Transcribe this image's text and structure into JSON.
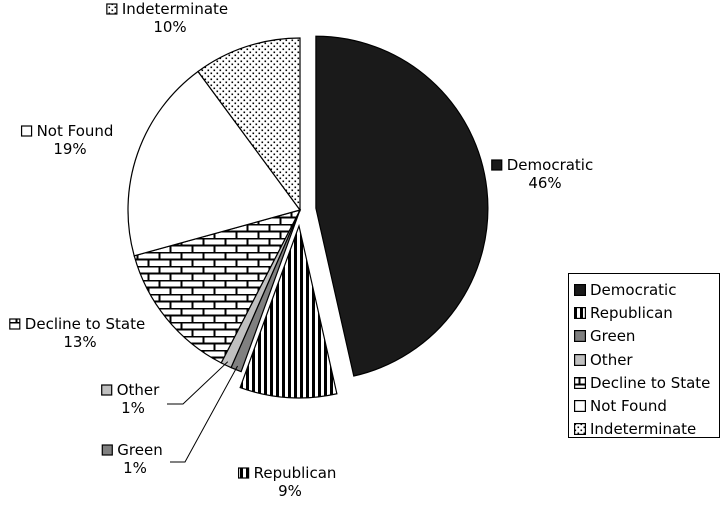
{
  "chart_data": {
    "type": "pie",
    "title": "",
    "legend_position": "right",
    "slices": [
      {
        "label": "Democratic",
        "value": 46,
        "value_label": "46%",
        "fill": "#1a1a1a",
        "pattern": "solid",
        "exploded": true
      },
      {
        "label": "Republican",
        "value": 9,
        "value_label": "9%",
        "fill": "#ffffff",
        "pattern": "vertical-stripes",
        "exploded": true
      },
      {
        "label": "Green",
        "value": 1,
        "value_label": "1%",
        "fill": "#808080",
        "pattern": "solid",
        "exploded": false
      },
      {
        "label": "Other",
        "value": 1,
        "value_label": "1%",
        "fill": "#c0c0c0",
        "pattern": "solid",
        "exploded": false
      },
      {
        "label": "Decline to State",
        "value": 13,
        "value_label": "13%",
        "fill": "#ffffff",
        "pattern": "brick",
        "exploded": false
      },
      {
        "label": "Not Found",
        "value": 19,
        "value_label": "19%",
        "fill": "#ffffff",
        "pattern": "none",
        "exploded": false
      },
      {
        "label": "Indeterminate",
        "value": 10,
        "value_label": "10%",
        "fill": "#ffffff",
        "pattern": "dots",
        "exploded": false
      }
    ]
  }
}
